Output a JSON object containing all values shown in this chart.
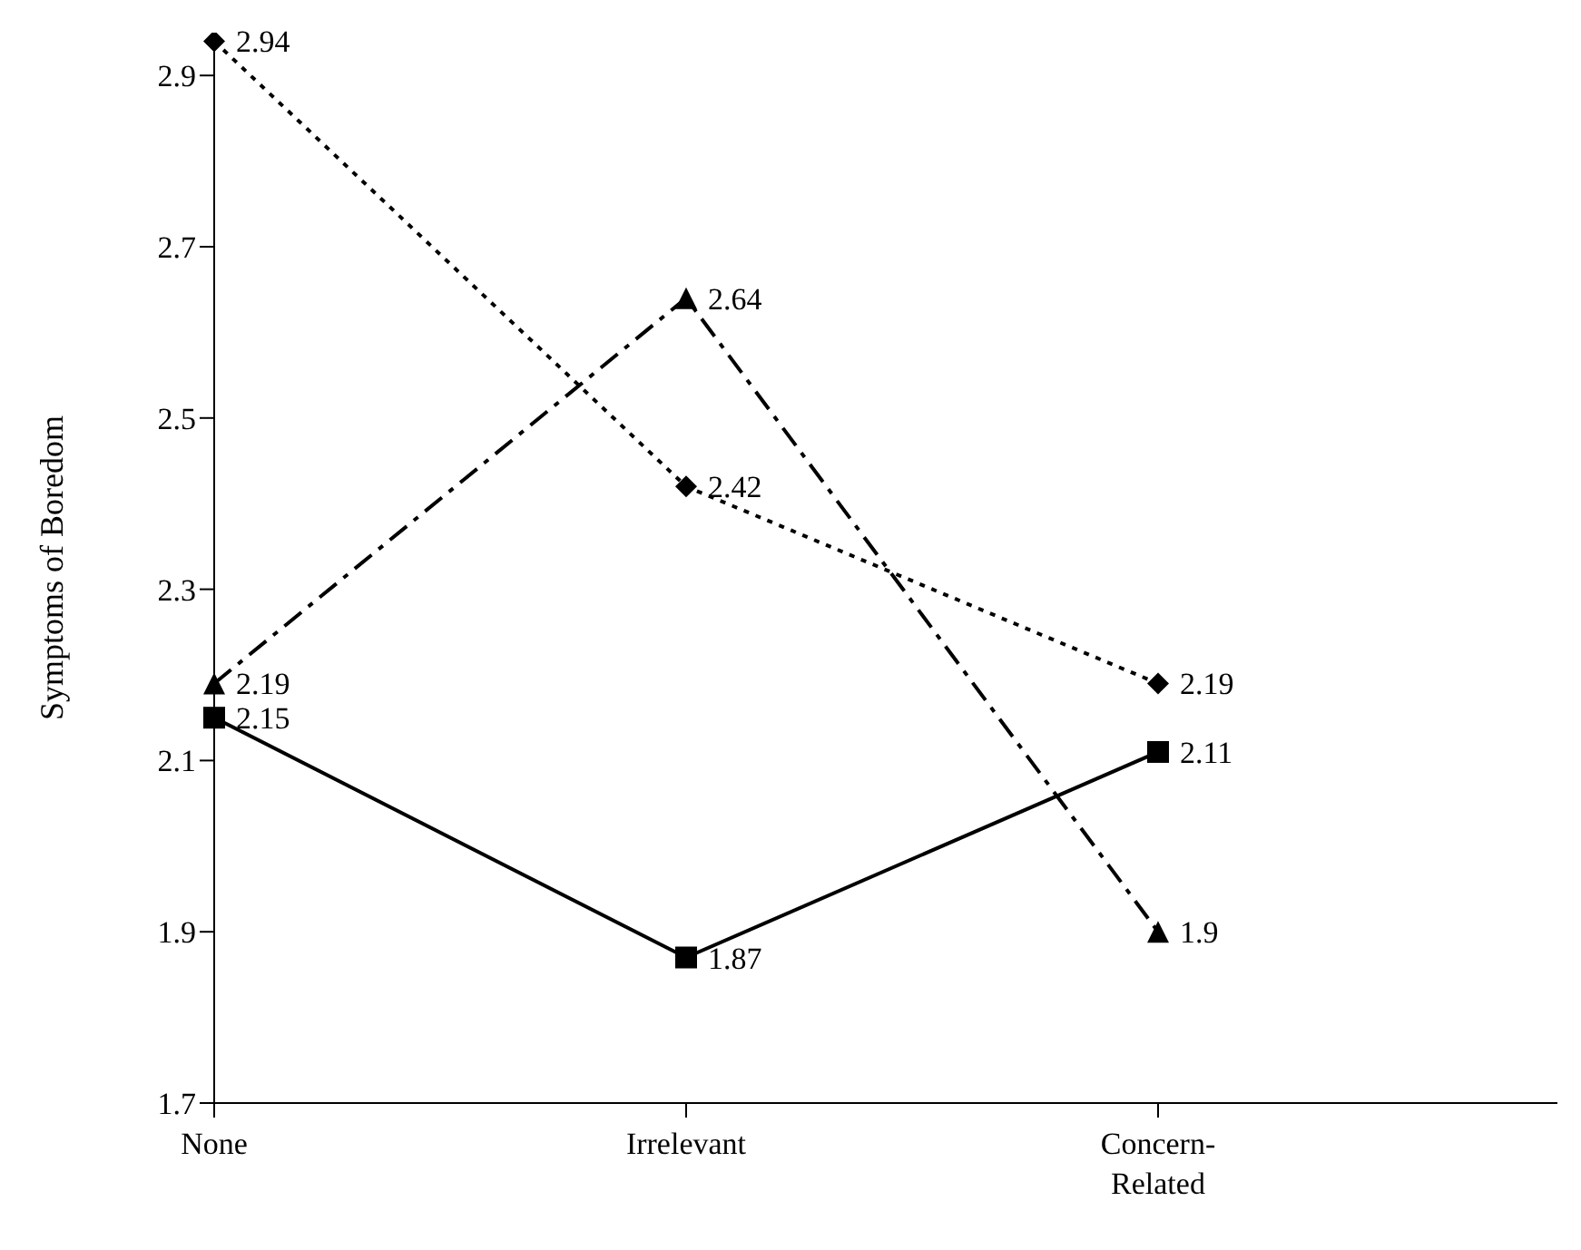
{
  "chart_data": {
    "type": "line",
    "ylabel": "Symptoms of Boredom",
    "categories": [
      "None",
      "Irrelevant",
      "Concern-Related"
    ],
    "series": [
      {
        "color": "#000000",
        "marker": "diamond",
        "line_style": "dotted",
        "values": [
          2.94,
          2.42,
          2.19
        ]
      },
      {
        "color": "#000000",
        "marker": "triangle",
        "line_style": "dashed",
        "values": [
          2.19,
          2.64,
          1.9
        ]
      },
      {
        "color": "#000000",
        "marker": "square",
        "line_style": "solid",
        "values": [
          2.15,
          1.87,
          2.11
        ]
      }
    ],
    "ylim": [
      1.7,
      2.95
    ],
    "yticks": [
      1.7,
      1.9,
      2.1,
      2.3,
      2.5,
      2.7,
      2.9
    ],
    "grid": false,
    "legend": false,
    "data_labels": true
  }
}
